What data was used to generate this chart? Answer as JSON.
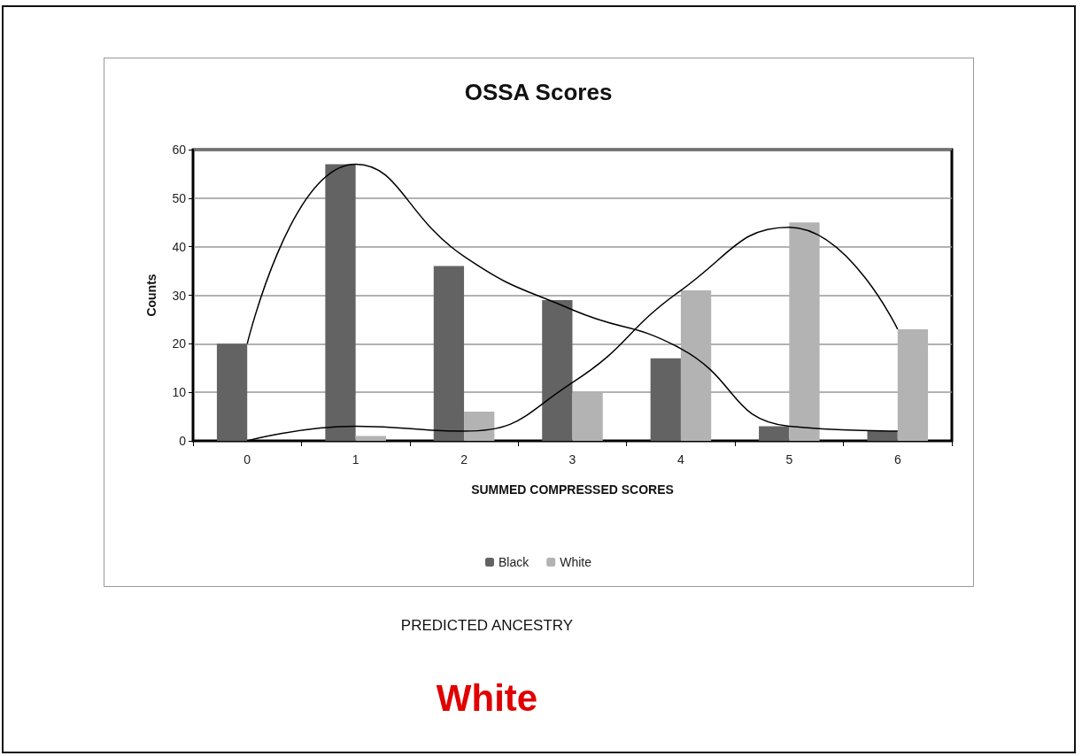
{
  "chart_data": {
    "type": "bar",
    "title": "OSSA Scores",
    "xlabel": "SUMMED COMPRESSED SCORES",
    "ylabel": "Counts",
    "categories": [
      "0",
      "1",
      "2",
      "3",
      "4",
      "5",
      "6"
    ],
    "series": [
      {
        "name": "Black",
        "color": "#636363",
        "values": [
          20,
          57,
          36,
          29,
          17,
          3,
          2
        ]
      },
      {
        "name": "White",
        "color": "#b3b3b3",
        "values": [
          0,
          1,
          6,
          10,
          31,
          45,
          23
        ]
      },
      {
        "type": "line",
        "color": "#000000",
        "values": [
          20,
          57,
          38,
          27,
          19,
          3,
          2
        ]
      },
      {
        "type": "line",
        "color": "#000000",
        "values": [
          0,
          3,
          2,
          12,
          31,
          44,
          23
        ]
      }
    ],
    "ylim": [
      0,
      60
    ],
    "yticks": [
      0,
      10,
      20,
      30,
      40,
      50,
      60
    ],
    "grid": "y",
    "legend": "bottom",
    "marker": "none",
    "line_style": "solid",
    "annotations": [
      "PREDICTED ANCESTRY",
      "White"
    ]
  }
}
